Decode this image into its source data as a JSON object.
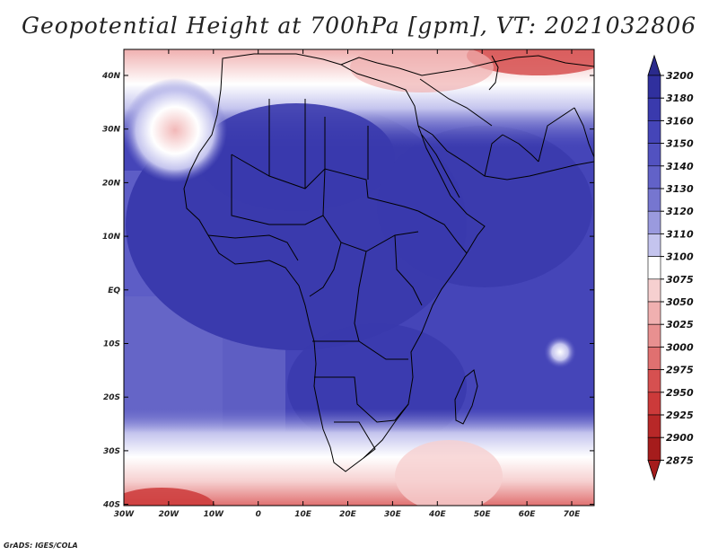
{
  "title": "Geopotential Height at 700hPa [gpm], VT: 2021032806",
  "credit": "GrADS: IGES/COLA",
  "axes": {
    "lon_ticks": [
      "30W",
      "20W",
      "10W",
      "0",
      "10E",
      "20E",
      "30E",
      "40E",
      "50E",
      "60E",
      "70E"
    ],
    "lat_ticks": [
      "40N",
      "30N",
      "20N",
      "10N",
      "EQ",
      "10S",
      "20S",
      "30S",
      "40S"
    ]
  },
  "colorbar": {
    "levels": [
      "3200",
      "3180",
      "3160",
      "3150",
      "3140",
      "3130",
      "3120",
      "3110",
      "3100",
      "3075",
      "3050",
      "3025",
      "3000",
      "2975",
      "2950",
      "2925",
      "2900",
      "2875"
    ],
    "colors": [
      "#2a2a8c",
      "#30309e",
      "#3a3aad",
      "#4545b8",
      "#5252c0",
      "#6262c8",
      "#7676d0",
      "#9a9ade",
      "#c4c4ee",
      "#ffffff",
      "#f6d0d0",
      "#f0b0b0",
      "#e89090",
      "#e07070",
      "#d65050",
      "#cc3a3a",
      "#b82828",
      "#a51c1c"
    ]
  },
  "colors": {
    "land_fill": "#4040b2",
    "ocean_deep": "#4a4ab8",
    "ocean_mid": "#6a6ac8",
    "ridge_low": "#f3c4c4",
    "border": "#000000"
  }
}
